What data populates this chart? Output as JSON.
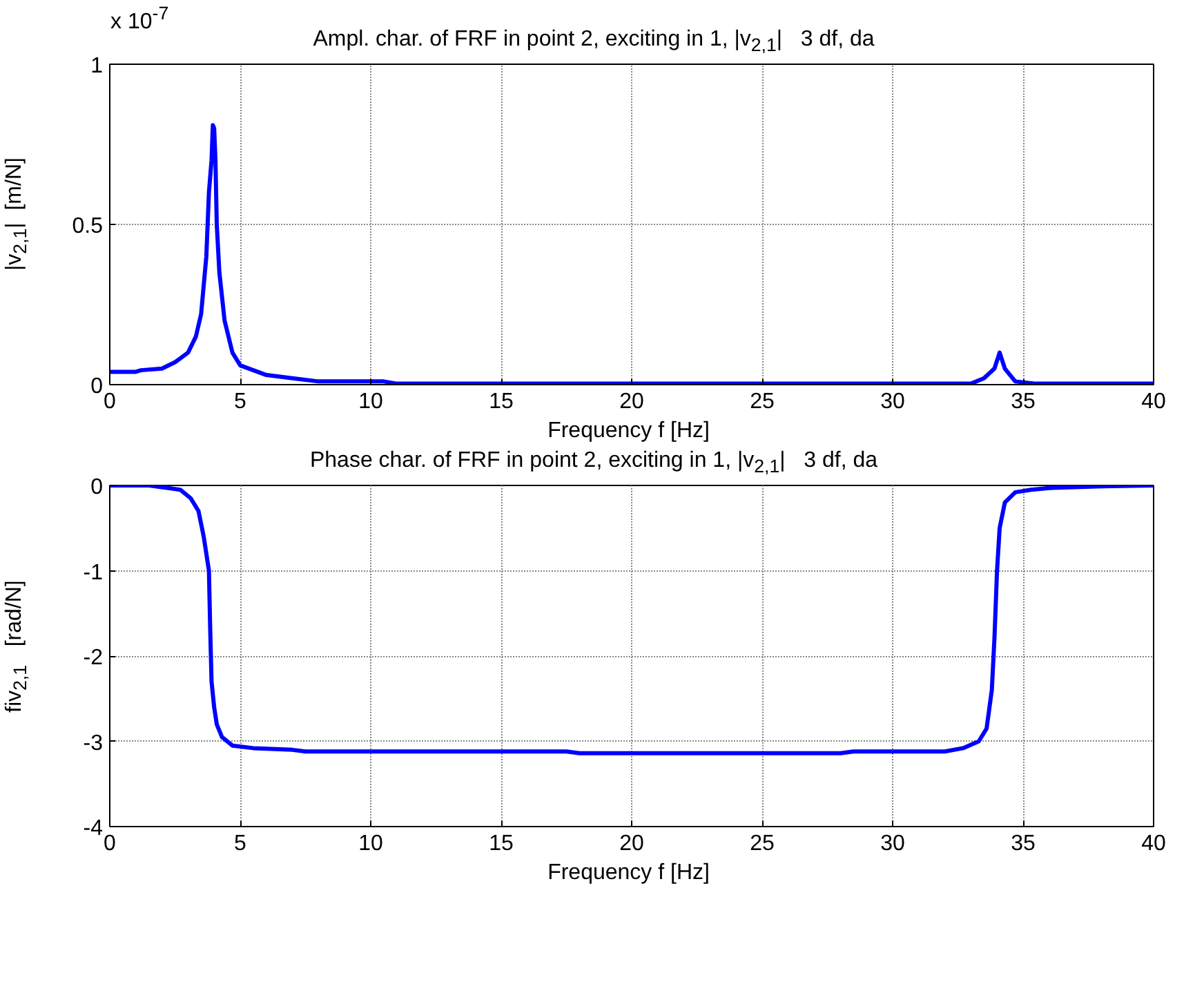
{
  "chart_data": [
    {
      "type": "line",
      "title": "Ampl. char. of FRF in point 2, exciting in 1, |v$_{2,1}$|   3 df, da",
      "xlabel": "Frequency f  [Hz]",
      "ylabel": "|v$_{2,1}$|  [m/N]",
      "annotations": [
        "x 10$^{-7}$"
      ],
      "xlim": [
        0,
        40
      ],
      "xticks": [
        0,
        5,
        10,
        15,
        20,
        25,
        30,
        35,
        40
      ],
      "ylim": [
        0,
        1
      ],
      "yticks": [
        0,
        0.5,
        1
      ],
      "grid": true,
      "line_style": "solid",
      "series": [
        {
          "color": "#0000ff",
          "x": [
            0,
            1,
            1.2,
            2,
            2.5,
            3,
            3.3,
            3.5,
            3.7,
            3.8,
            3.9,
            3.95,
            4.0,
            4.05,
            4.1,
            4.2,
            4.4,
            4.7,
            5,
            6,
            7,
            8,
            10.5,
            11,
            33,
            33.5,
            33.9,
            34.1,
            34.3,
            34.7,
            35.5,
            40
          ],
          "values": [
            0.04,
            0.04,
            0.045,
            0.05,
            0.07,
            0.1,
            0.15,
            0.22,
            0.4,
            0.6,
            0.7,
            0.81,
            0.8,
            0.7,
            0.5,
            0.35,
            0.2,
            0.1,
            0.06,
            0.03,
            0.02,
            0.01,
            0.01,
            0.003,
            0.003,
            0.02,
            0.05,
            0.1,
            0.05,
            0.01,
            0.003,
            0.003
          ]
        }
      ]
    },
    {
      "type": "line",
      "title": "Phase char. of FRF in point 2, exciting in 1, |v$_{2,1}$|   3 df, da",
      "xlabel": "Frequency f  [Hz]",
      "ylabel": "fiv$_{2,1}$   [rad/N]",
      "xlim": [
        0,
        40
      ],
      "xticks": [
        0,
        5,
        10,
        15,
        20,
        25,
        30,
        35,
        40
      ],
      "ylim": [
        -4,
        0
      ],
      "yticks": [
        -4,
        -3,
        -2,
        -1,
        0
      ],
      "grid": true,
      "line_style": "solid",
      "series": [
        {
          "color": "#0000ff",
          "x": [
            0,
            1.5,
            2,
            2.7,
            3.1,
            3.4,
            3.6,
            3.8,
            3.85,
            3.9,
            4.0,
            4.1,
            4.3,
            4.7,
            5.5,
            7,
            7.5,
            17.5,
            18,
            28,
            28.5,
            32,
            32.7,
            33.3,
            33.6,
            33.8,
            33.9,
            34.0,
            34.1,
            34.3,
            34.7,
            35.3,
            36,
            38,
            40
          ],
          "values": [
            0,
            0,
            -0.02,
            -0.05,
            -0.15,
            -0.3,
            -0.6,
            -1,
            -1.7,
            -2.3,
            -2.6,
            -2.8,
            -2.95,
            -3.05,
            -3.08,
            -3.1,
            -3.12,
            -3.12,
            -3.14,
            -3.14,
            -3.12,
            -3.12,
            -3.08,
            -3.0,
            -2.85,
            -2.4,
            -1.8,
            -1,
            -0.5,
            -0.2,
            -0.08,
            -0.05,
            -0.03,
            -0.01,
            0
          ]
        }
      ]
    }
  ]
}
